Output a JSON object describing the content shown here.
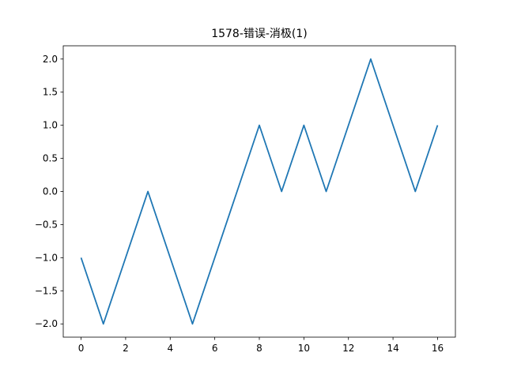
{
  "chart_data": {
    "type": "line",
    "title": "1578-错误-消极(1)",
    "xlabel": "",
    "ylabel": "",
    "x": [
      0,
      1,
      2,
      3,
      4,
      5,
      6,
      7,
      8,
      9,
      10,
      11,
      12,
      13,
      14,
      15,
      16
    ],
    "series": [
      {
        "values": [
          -1,
          -2,
          -1,
          0,
          -1,
          -2,
          -1,
          0,
          1,
          0,
          1,
          0,
          1,
          2,
          1,
          0,
          1
        ],
        "color": "#1f77b4"
      }
    ],
    "xlim": [
      -0.8,
      16.8
    ],
    "ylim": [
      -2.2,
      2.2
    ],
    "xticks": [
      0,
      2,
      4,
      6,
      8,
      10,
      12,
      14,
      16
    ],
    "xtick_labels": [
      "0",
      "2",
      "4",
      "6",
      "8",
      "10",
      "12",
      "14",
      "16"
    ],
    "yticks": [
      -2.0,
      -1.5,
      -1.0,
      -0.5,
      0.0,
      0.5,
      1.0,
      1.5,
      2.0
    ],
    "ytick_labels": [
      "−2.0",
      "−1.5",
      "−1.0",
      "−0.5",
      "0.0",
      "0.5",
      "1.0",
      "1.5",
      "2.0"
    ],
    "grid": false,
    "legend": false
  }
}
